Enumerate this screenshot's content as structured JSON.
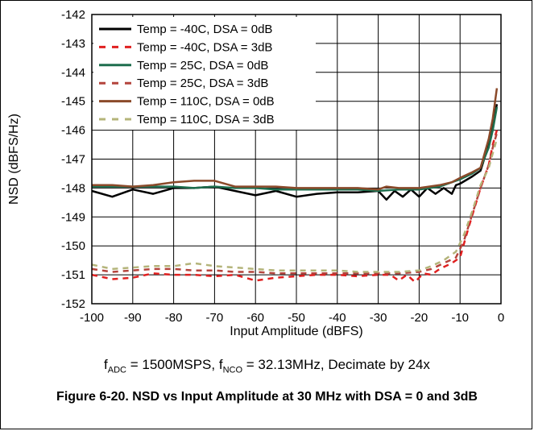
{
  "chart_data": {
    "type": "line",
    "xlabel": "Input Amplitude (dBFS)",
    "ylabel": "NSD (dBFS/Hz)",
    "xlim": [
      -100,
      0
    ],
    "ylim": [
      -152,
      -142
    ],
    "xticks": [
      "-100",
      "-90",
      "-80",
      "-70",
      "-60",
      "-50",
      "-40",
      "-30",
      "-20",
      "-10",
      "0"
    ],
    "yticks": [
      "-142",
      "-143",
      "-144",
      "-145",
      "-146",
      "-147",
      "-148",
      "-149",
      "-150",
      "-151",
      "-152"
    ],
    "grid": true,
    "legend_position": "top-left",
    "series": [
      {
        "name": "Temp = -40C, DSA = 0dB",
        "color": "#000000",
        "dash": "solid",
        "points": [
          [
            -100,
            -148.1
          ],
          [
            -95,
            -148.3
          ],
          [
            -90,
            -148.05
          ],
          [
            -85,
            -148.2
          ],
          [
            -80,
            -148.0
          ],
          [
            -75,
            -148.0
          ],
          [
            -70,
            -147.95
          ],
          [
            -65,
            -148.1
          ],
          [
            -60,
            -148.25
          ],
          [
            -55,
            -148.1
          ],
          [
            -50,
            -148.3
          ],
          [
            -45,
            -148.2
          ],
          [
            -40,
            -148.15
          ],
          [
            -35,
            -148.15
          ],
          [
            -30,
            -148.1
          ],
          [
            -28,
            -148.4
          ],
          [
            -26,
            -148.1
          ],
          [
            -24,
            -148.3
          ],
          [
            -22,
            -148.05
          ],
          [
            -20,
            -148.3
          ],
          [
            -18,
            -148.0
          ],
          [
            -16,
            -148.2
          ],
          [
            -14,
            -148.0
          ],
          [
            -12,
            -148.2
          ],
          [
            -11,
            -147.9
          ],
          [
            -10,
            -147.85
          ],
          [
            -7,
            -147.6
          ],
          [
            -5,
            -147.4
          ],
          [
            -3,
            -146.5
          ],
          [
            -2,
            -145.9
          ],
          [
            -1,
            -145.1
          ]
        ]
      },
      {
        "name": "Temp = -40C, DSA = 3dB",
        "color": "#e02020",
        "dash": "dashed",
        "points": [
          [
            -100,
            -151.0
          ],
          [
            -95,
            -151.15
          ],
          [
            -90,
            -151.1
          ],
          [
            -85,
            -150.95
          ],
          [
            -80,
            -151.0
          ],
          [
            -75,
            -151.0
          ],
          [
            -70,
            -151.05
          ],
          [
            -65,
            -151.0
          ],
          [
            -60,
            -151.2
          ],
          [
            -55,
            -151.1
          ],
          [
            -50,
            -151.05
          ],
          [
            -45,
            -151.0
          ],
          [
            -40,
            -151.0
          ],
          [
            -35,
            -151.05
          ],
          [
            -30,
            -151.0
          ],
          [
            -27,
            -151.0
          ],
          [
            -25,
            -151.2
          ],
          [
            -23,
            -151.0
          ],
          [
            -21,
            -151.25
          ],
          [
            -19,
            -150.95
          ],
          [
            -17,
            -151.0
          ],
          [
            -15,
            -150.8
          ],
          [
            -12,
            -150.6
          ],
          [
            -10,
            -150.4
          ],
          [
            -8,
            -149.4
          ],
          [
            -5,
            -148.0
          ],
          [
            -3,
            -147.2
          ],
          [
            -2,
            -146.5
          ],
          [
            -1,
            -146.0
          ]
        ]
      },
      {
        "name": "Temp = 25C, DSA = 0dB",
        "color": "#1e6e4e",
        "dash": "solid",
        "points": [
          [
            -100,
            -147.95
          ],
          [
            -95,
            -147.95
          ],
          [
            -90,
            -147.95
          ],
          [
            -85,
            -147.95
          ],
          [
            -80,
            -147.95
          ],
          [
            -75,
            -148.0
          ],
          [
            -70,
            -147.95
          ],
          [
            -65,
            -148.0
          ],
          [
            -60,
            -148.0
          ],
          [
            -55,
            -148.05
          ],
          [
            -50,
            -148.05
          ],
          [
            -45,
            -148.05
          ],
          [
            -40,
            -148.05
          ],
          [
            -35,
            -148.05
          ],
          [
            -30,
            -148.1
          ],
          [
            -25,
            -148.05
          ],
          [
            -20,
            -148.05
          ],
          [
            -15,
            -147.95
          ],
          [
            -12,
            -147.8
          ],
          [
            -10,
            -147.7
          ],
          [
            -7,
            -147.5
          ],
          [
            -5,
            -147.3
          ],
          [
            -3,
            -146.6
          ],
          [
            -2,
            -146.0
          ],
          [
            -1,
            -145.2
          ]
        ]
      },
      {
        "name": "Temp = 25C, DSA = 3dB",
        "color": "#b4443c",
        "dash": "dashed",
        "points": [
          [
            -100,
            -150.8
          ],
          [
            -95,
            -150.9
          ],
          [
            -90,
            -150.85
          ],
          [
            -85,
            -150.8
          ],
          [
            -80,
            -150.8
          ],
          [
            -75,
            -150.85
          ],
          [
            -70,
            -150.85
          ],
          [
            -65,
            -150.9
          ],
          [
            -60,
            -150.9
          ],
          [
            -55,
            -150.95
          ],
          [
            -50,
            -150.95
          ],
          [
            -45,
            -150.95
          ],
          [
            -40,
            -150.95
          ],
          [
            -35,
            -150.95
          ],
          [
            -30,
            -150.95
          ],
          [
            -25,
            -150.95
          ],
          [
            -20,
            -150.9
          ],
          [
            -17,
            -150.8
          ],
          [
            -14,
            -150.6
          ],
          [
            -11,
            -150.4
          ],
          [
            -9,
            -149.8
          ],
          [
            -7,
            -148.9
          ],
          [
            -5,
            -148.0
          ],
          [
            -3,
            -147.2
          ],
          [
            -2,
            -146.6
          ],
          [
            -1,
            -146.1
          ]
        ]
      },
      {
        "name": "Temp = 110C, DSA = 0dB",
        "color": "#8b4a2a",
        "dash": "solid",
        "points": [
          [
            -100,
            -147.9
          ],
          [
            -95,
            -147.9
          ],
          [
            -90,
            -147.95
          ],
          [
            -85,
            -147.9
          ],
          [
            -80,
            -147.8
          ],
          [
            -75,
            -147.75
          ],
          [
            -70,
            -147.75
          ],
          [
            -65,
            -147.95
          ],
          [
            -60,
            -147.95
          ],
          [
            -55,
            -147.95
          ],
          [
            -50,
            -148.0
          ],
          [
            -45,
            -148.0
          ],
          [
            -40,
            -148.0
          ],
          [
            -35,
            -148.0
          ],
          [
            -30,
            -148.05
          ],
          [
            -28,
            -147.95
          ],
          [
            -25,
            -148.0
          ],
          [
            -20,
            -148.0
          ],
          [
            -15,
            -147.9
          ],
          [
            -12,
            -147.8
          ],
          [
            -10,
            -147.65
          ],
          [
            -7,
            -147.45
          ],
          [
            -5,
            -147.3
          ],
          [
            -3,
            -146.3
          ],
          [
            -2,
            -145.6
          ],
          [
            -1,
            -144.55
          ]
        ]
      },
      {
        "name": "Temp = 110C, DSA = 3dB",
        "color": "#b4b47a",
        "dash": "dashed",
        "points": [
          [
            -100,
            -150.65
          ],
          [
            -95,
            -150.8
          ],
          [
            -90,
            -150.75
          ],
          [
            -85,
            -150.7
          ],
          [
            -80,
            -150.7
          ],
          [
            -75,
            -150.6
          ],
          [
            -70,
            -150.7
          ],
          [
            -65,
            -150.75
          ],
          [
            -60,
            -150.8
          ],
          [
            -55,
            -150.85
          ],
          [
            -50,
            -150.85
          ],
          [
            -45,
            -150.85
          ],
          [
            -40,
            -150.85
          ],
          [
            -35,
            -150.9
          ],
          [
            -30,
            -150.9
          ],
          [
            -25,
            -150.9
          ],
          [
            -20,
            -150.85
          ],
          [
            -17,
            -150.7
          ],
          [
            -14,
            -150.5
          ],
          [
            -11,
            -150.2
          ],
          [
            -9,
            -149.6
          ],
          [
            -7,
            -148.8
          ],
          [
            -5,
            -147.9
          ],
          [
            -3,
            -147.3
          ],
          [
            -2,
            -146.8
          ],
          [
            -1,
            -146.3
          ]
        ]
      }
    ]
  },
  "note": {
    "f_adc_main": "f",
    "f_adc_sub": "ADC",
    "f_adc_value": " = 1500MSPS, f",
    "f_nco_sub": "NCO",
    "f_nco_value": " = 32.13MHz, Decimate by 24x"
  },
  "caption": "Figure 6-20. NSD vs Input Amplitude at 30 MHz with DSA = 0 and 3dB"
}
